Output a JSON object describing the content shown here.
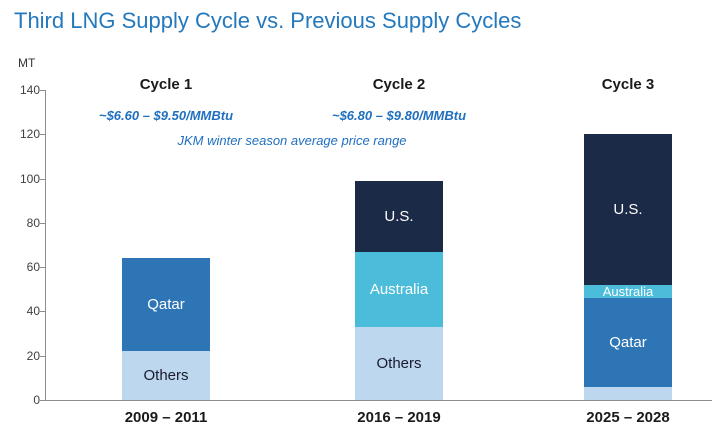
{
  "title": "Third LNG Supply Cycle vs. Previous Supply Cycles",
  "colors": {
    "title_blue": "#2379BE",
    "annotation_blue": "#1F6FBF",
    "axis_gray": "#8C8C8C"
  },
  "chart_data": {
    "type": "bar",
    "stacked": true,
    "title": "Third LNG Supply Cycle vs. Previous Supply Cycles",
    "unit_label": "MT",
    "ylim": [
      0,
      140
    ],
    "ytick_values": [
      0,
      20,
      40,
      60,
      80,
      100,
      120,
      140
    ],
    "grid": false,
    "legend": "none (labels inside segments)",
    "categories": [
      "2009 – 2011",
      "2016 – 2019",
      "2025 – 2028"
    ],
    "group_labels": [
      "Cycle 1",
      "Cycle 2",
      "Cycle 3"
    ],
    "price_annotations": [
      "~$6.60 – $9.50/MMBtu",
      "~$6.80 – $9.80/MMBtu"
    ],
    "caption": "JKM winter season average price range",
    "series_colors": {
      "Others": "#BDD7EE",
      "Qatar": "#2E75B6",
      "Australia": "#4BBCD9",
      "U.S.": "#1B2A47"
    },
    "bars": [
      {
        "category": "2009 – 2011",
        "total": 64,
        "segments": [
          {
            "name": "Others",
            "value": 22,
            "label": "Others",
            "text_color": "#1A1A2E"
          },
          {
            "name": "Qatar",
            "value": 42,
            "label": "Qatar",
            "text_color": "#FFFFFF"
          }
        ]
      },
      {
        "category": "2016 – 2019",
        "total": 99,
        "segments": [
          {
            "name": "Others",
            "value": 33,
            "label": "Others",
            "text_color": "#1A1A2E"
          },
          {
            "name": "Australia",
            "value": 34,
            "label": "Australia",
            "text_color": "#FFFFFF"
          },
          {
            "name": "U.S.",
            "value": 32,
            "label": "U.S.",
            "text_color": "#FFFFFF"
          }
        ]
      },
      {
        "category": "2025 – 2028",
        "total": 120,
        "segments": [
          {
            "name": "Others",
            "value": 6,
            "label": "",
            "text_color": "#1A1A2E"
          },
          {
            "name": "Qatar",
            "value": 40,
            "label": "Qatar",
            "text_color": "#FFFFFF"
          },
          {
            "name": "Australia",
            "value": 6,
            "label": "Australia",
            "text_color": "#FFFFFF"
          },
          {
            "name": "U.S.",
            "value": 68,
            "label": "U.S.",
            "text_color": "#FFFFFF"
          }
        ]
      }
    ]
  }
}
